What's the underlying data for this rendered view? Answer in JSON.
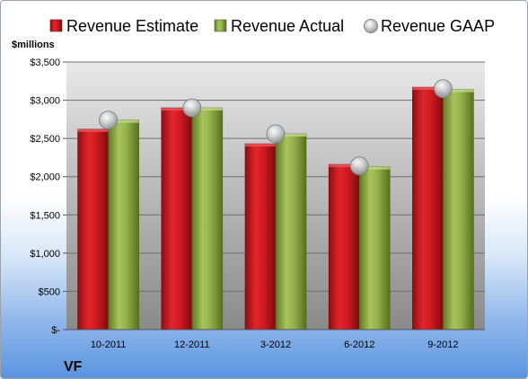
{
  "chart_data": {
    "type": "bar",
    "unit_label": "$millions",
    "company": "VF",
    "categories": [
      "10-2011",
      "12-2011",
      "3-2012",
      "6-2012",
      "9-2012"
    ],
    "series": [
      {
        "name": "Revenue Estimate",
        "kind": "bar",
        "color": "#c8161d",
        "values": [
          2620,
          2900,
          2430,
          2160,
          3170
        ]
      },
      {
        "name": "Revenue Actual",
        "kind": "bar",
        "color": "#8fac3f",
        "values": [
          2740,
          2900,
          2560,
          2130,
          3140
        ]
      },
      {
        "name": "Revenue GAAP",
        "kind": "marker",
        "color": "#b9bcc0",
        "values": [
          2740,
          2900,
          2560,
          2140,
          3150
        ]
      }
    ],
    "ylim": [
      0,
      3500
    ],
    "yticks": [
      0,
      500,
      1000,
      1500,
      2000,
      2500,
      3000,
      3500
    ],
    "ytick_labels": [
      "$-",
      "$500",
      "$1,000",
      "$1,500",
      "$2,000",
      "$2,500",
      "$3,000",
      "$3,500"
    ],
    "grid": true,
    "legend_position": "top"
  }
}
